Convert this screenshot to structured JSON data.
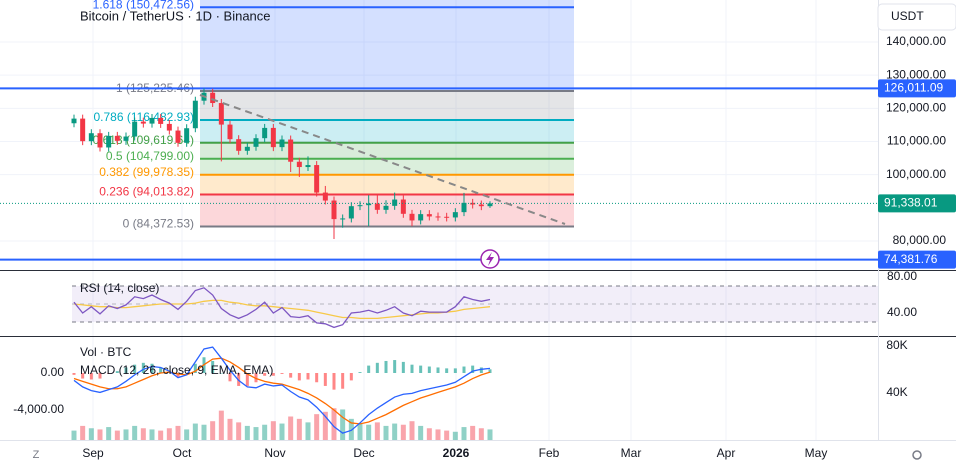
{
  "chart_data": {
    "type": "candlestick",
    "title": "Bitcoin / TetherUS · 1D · Binance",
    "currency": "USDT",
    "open": [
      115500,
      116900,
      110100,
      112500,
      108200,
      111700,
      110200,
      111500,
      116000,
      115400,
      117100,
      115300,
      113300,
      109600,
      114000,
      122300,
      124700,
      121600,
      115100,
      110700,
      107200,
      108400,
      111000,
      114100,
      108300,
      110600,
      103900,
      102300,
      102900,
      94600,
      92200,
      86600,
      86800,
      90500,
      90800,
      91300,
      89400,
      90600,
      92500,
      88200,
      86200,
      88100,
      87400,
      87300,
      87100,
      88700,
      91500,
      91000,
      90500
    ],
    "high": [
      118100,
      118100,
      113700,
      113700,
      112900,
      112900,
      112700,
      117200,
      117200,
      118300,
      118300,
      116500,
      114500,
      115200,
      123500,
      126000,
      125900,
      122800,
      116300,
      111900,
      109600,
      112200,
      115300,
      115300,
      111800,
      111800,
      105100,
      105500,
      104100,
      96600,
      93400,
      88000,
      91700,
      92000,
      93800,
      94000,
      92300,
      94600,
      93700,
      89400,
      89300,
      89300,
      88600,
      88500,
      89900,
      94500,
      92700,
      92200,
      92000
    ],
    "low": [
      114300,
      108900,
      108900,
      107000,
      107000,
      109000,
      109000,
      110300,
      114200,
      114200,
      114100,
      112100,
      108400,
      108400,
      112800,
      121100,
      120400,
      104000,
      109500,
      106000,
      106000,
      107200,
      109800,
      107100,
      107100,
      100800,
      99300,
      101100,
      93400,
      91000,
      80600,
      84000,
      85600,
      89300,
      84500,
      88200,
      88200,
      89400,
      87000,
      84500,
      85000,
      86200,
      86100,
      85900,
      85900,
      87500,
      89800,
      89300,
      90000
    ],
    "close": [
      116900,
      110100,
      112500,
      108200,
      111700,
      110200,
      111500,
      116000,
      115400,
      117100,
      115300,
      113300,
      109600,
      114000,
      122300,
      124700,
      121600,
      115100,
      110700,
      107200,
      108400,
      111000,
      114100,
      108300,
      110600,
      103900,
      102300,
      102900,
      94600,
      92200,
      86600,
      86800,
      90500,
      90800,
      91300,
      89400,
      90600,
      92500,
      88200,
      86200,
      88100,
      87400,
      87300,
      87100,
      88700,
      91500,
      91000,
      90500,
      91338.01
    ],
    "up_color": "#089981",
    "down_color": "#f23645",
    "ylim": [
      74000,
      152500
    ],
    "yticks": [
      {
        "value": 140000,
        "label": "140,000.00"
      },
      {
        "value": 130000,
        "label": "130,000.00"
      },
      {
        "value": 120000,
        "label": "120,000.00"
      },
      {
        "value": 110000,
        "label": "110,000.00"
      },
      {
        "value": 100000,
        "label": "100,000.00"
      },
      {
        "value": 80000,
        "label": "80,000.00"
      }
    ],
    "price_lines": [
      {
        "value": 126011.09,
        "label": "126,011.09",
        "color": "#2962ff"
      },
      {
        "value": 74381.76,
        "label": "74,381.76",
        "color": "#2962ff"
      }
    ],
    "last_price": {
      "value": 91338.01,
      "label": "91,338.01",
      "color": "#089981"
    },
    "fib_levels": [
      {
        "value": 150472.56,
        "label": "1.618 (150,472.56)",
        "color": "#2962ff"
      },
      {
        "value": 125225.46,
        "label": "1 (125,225.46)",
        "color": "#787b86"
      },
      {
        "value": 116482.93,
        "label": "0.786 (116,482.93)",
        "color": "#00acc1"
      },
      {
        "value": 109619.64,
        "label": "0.618 (109,619.64)",
        "color": "#43a047"
      },
      {
        "value": 104799,
        "label": "0.5 (104,799.00)",
        "color": "#4caf50"
      },
      {
        "value": 99978.35,
        "label": "0.382 (99,978.35)",
        "color": "#ff9800"
      },
      {
        "value": 94013.82,
        "label": "0.236 (94,013.82)",
        "color": "#f23645"
      },
      {
        "value": 84372.53,
        "label": "0 (84,372.53)",
        "color": "#787b86"
      }
    ],
    "months": [
      "Sep",
      "Oct",
      "Nov",
      "Dec",
      "2026",
      "Feb",
      "Mar",
      "Apr",
      "May"
    ],
    "rsi": {
      "title": "RSI (14, close)",
      "color": "#7e57c2",
      "ma_color": "#f7c948",
      "values": [
        52,
        40,
        47,
        39,
        48,
        45,
        49,
        58,
        56,
        60,
        55,
        51,
        44,
        53,
        65,
        68,
        60,
        45,
        38,
        34,
        38,
        44,
        52,
        40,
        46,
        36,
        35,
        37,
        29,
        28,
        24,
        27,
        40,
        41,
        43,
        40,
        43,
        47,
        40,
        37,
        42,
        41,
        41,
        41,
        47,
        58,
        55,
        53,
        55
      ],
      "ma": [
        50,
        49,
        48,
        47,
        47,
        46,
        46,
        47,
        48,
        49,
        50,
        50,
        50,
        50,
        51,
        53,
        54,
        54,
        52,
        51,
        49,
        48,
        48,
        47,
        46,
        45,
        44,
        43,
        41,
        39,
        37,
        35,
        35,
        34,
        34,
        34,
        35,
        36,
        37,
        38,
        39,
        40,
        40,
        41,
        42,
        44,
        45,
        46,
        47
      ],
      "band": [
        30,
        70
      ],
      "middle": 50,
      "ylim": [
        26,
        81
      ],
      "yticks": [
        {
          "value": 80,
          "label": "80.00"
        },
        {
          "value": 40,
          "label": "40.00"
        }
      ]
    },
    "volume": {
      "title": "Vol · BTC",
      "values": [
        8000,
        12000,
        10000,
        9000,
        11000,
        8000,
        9000,
        12000,
        10000,
        9000,
        8000,
        10000,
        12000,
        9000,
        14000,
        13000,
        16000,
        25000,
        18000,
        15000,
        12000,
        11000,
        13000,
        16000,
        14000,
        20000,
        18000,
        15000,
        22000,
        24000,
        27000,
        26000,
        18000,
        14000,
        13000,
        15000,
        12000,
        14000,
        13000,
        16000,
        12000,
        10000,
        9000,
        8000,
        7000,
        11000,
        12000,
        10000,
        9000
      ],
      "yticks": [
        {
          "value": 80000,
          "label": "80K"
        },
        {
          "value": 40000,
          "label": "40K"
        }
      ]
    },
    "macd": {
      "title": "MACD (12, 26, close, 9, EMA, EMA)",
      "macd_color": "#2962ff",
      "signal_color": "#ff6d00",
      "macd": [
        -800,
        -1500,
        -1900,
        -2100,
        -1800,
        -1500,
        -900,
        -200,
        400,
        700,
        600,
        200,
        -500,
        -200,
        1200,
        2600,
        2800,
        1600,
        300,
        -800,
        -1500,
        -1600,
        -1200,
        -1400,
        -1300,
        -2000,
        -2600,
        -2900,
        -3700,
        -4700,
        -5800,
        -6500,
        -6200,
        -5400,
        -4500,
        -3800,
        -3200,
        -2600,
        -2300,
        -2200,
        -1900,
        -1700,
        -1500,
        -1300,
        -1000,
        -400,
        200,
        400,
        500
      ],
      "signal": [
        -600,
        -900,
        -1200,
        -1500,
        -1700,
        -1700,
        -1500,
        -1100,
        -700,
        -300,
        0,
        100,
        -100,
        -200,
        200,
        900,
        1500,
        1600,
        1200,
        600,
        -100,
        -600,
        -900,
        -1100,
        -1200,
        -1500,
        -1800,
        -2200,
        -2700,
        -3300,
        -4000,
        -4800,
        -5400,
        -5500,
        -5300,
        -4900,
        -4500,
        -4000,
        -3500,
        -3100,
        -2700,
        -2400,
        -2100,
        -1800,
        -1500,
        -1100,
        -600,
        -200,
        100
      ],
      "hist": [
        -200,
        -600,
        -700,
        -600,
        -100,
        200,
        600,
        900,
        1100,
        1000,
        600,
        100,
        -400,
        0,
        1000,
        1700,
        1300,
        0,
        -900,
        -1400,
        -1400,
        -1000,
        -300,
        -300,
        -100,
        -500,
        -800,
        -700,
        -1000,
        -1400,
        -1800,
        -1700,
        -800,
        100,
        800,
        1100,
        1300,
        1400,
        1200,
        900,
        800,
        700,
        600,
        500,
        500,
        700,
        800,
        600,
        400
      ],
      "yticks": [
        {
          "value": 0,
          "label": "0.00"
        },
        {
          "value": -4000,
          "label": "-4,000.00"
        }
      ]
    }
  }
}
